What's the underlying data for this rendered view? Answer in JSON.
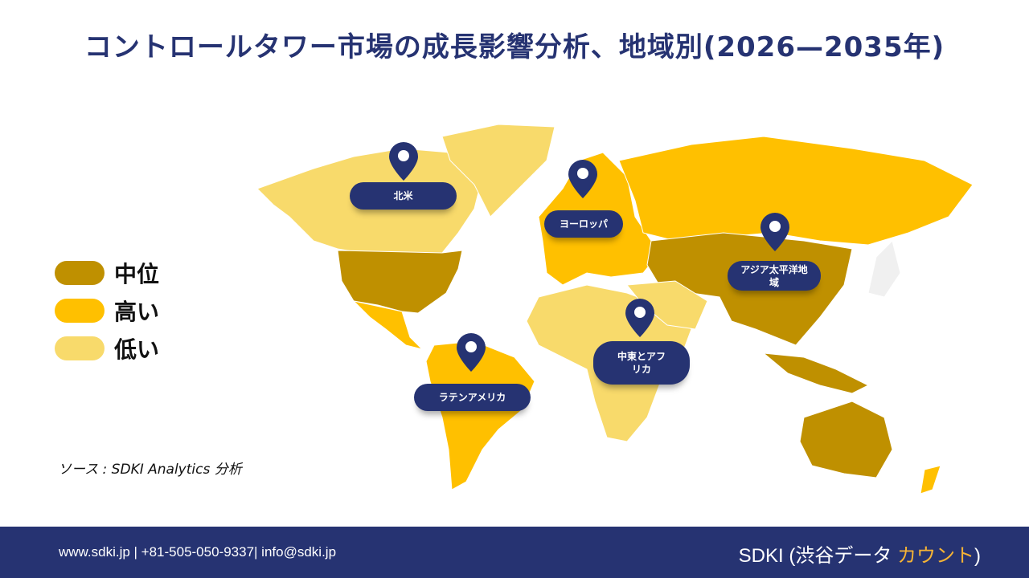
{
  "title": "コントロールタワー市場の成長影響分析、地域別(2026—2035年)",
  "legend": [
    {
      "label": "中位",
      "color": "#BF9000"
    },
    {
      "label": "高い",
      "color": "#FFC000"
    },
    {
      "label": "低い",
      "color": "#F8DA6B"
    }
  ],
  "source": "ソース : SDKI Analytics 分析",
  "regions": [
    {
      "label": "北米",
      "level": "中位"
    },
    {
      "label": "ヨーロッパ",
      "level": "高い"
    },
    {
      "label": "アジア太平洋地域",
      "level": "中位"
    },
    {
      "label": "中東とアフリカ",
      "level": "低い"
    },
    {
      "label": "ラテンアメリカ",
      "level": "高い"
    }
  ],
  "pin_icon": "map-pin-icon",
  "accent_color": "#263372",
  "footer": {
    "contact": "www.sdki.jp | +81-505-050-9337| info@sdki.jp",
    "brand_main": "SDKI (渋谷データ ",
    "brand_accent": "カウント",
    "brand_end": ")"
  }
}
